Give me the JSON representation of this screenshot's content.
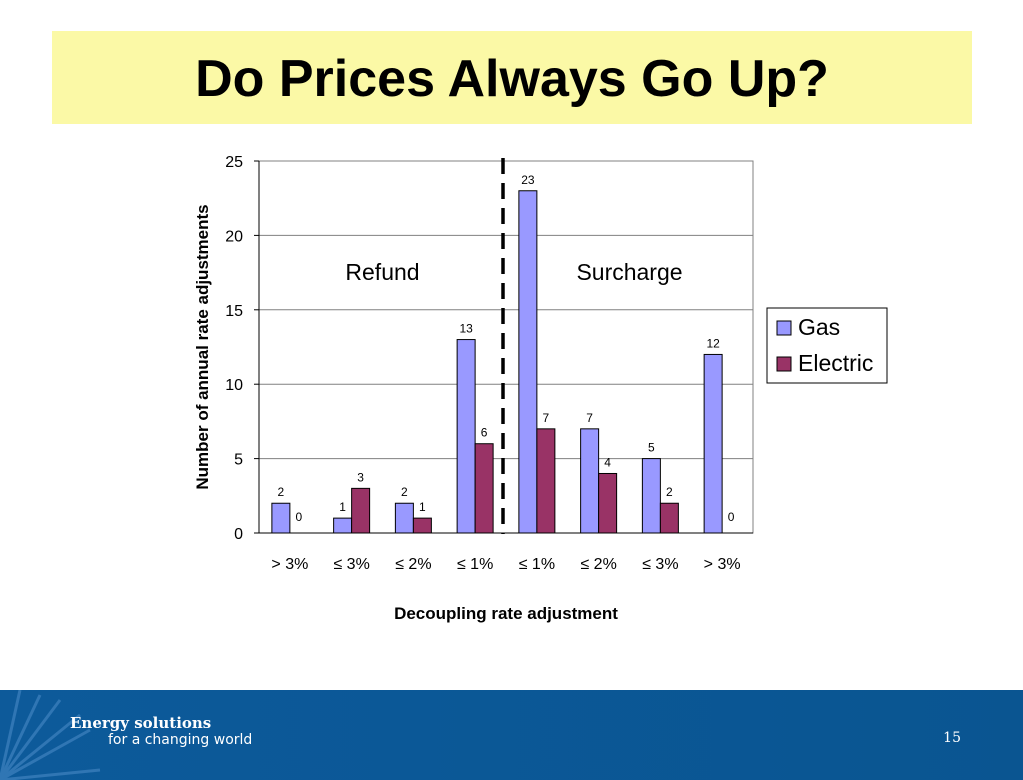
{
  "slide": {
    "title": "Do Prices Always Go Up?",
    "page_number": "15",
    "brand_line1": "Energy solutions",
    "brand_line2": "for a changing world",
    "title_bg": "#fbf9a6",
    "footer_bg": "#0b5897"
  },
  "chart_data": {
    "type": "bar",
    "categories": [
      "> 3%",
      "≤ 3%",
      "≤ 2%",
      "≤ 1%",
      "≤ 1%",
      "≤ 2%",
      "≤ 3%",
      "> 3%"
    ],
    "series": [
      {
        "name": "Gas",
        "values": [
          2,
          1,
          2,
          13,
          23,
          7,
          5,
          12
        ],
        "color": "#9999ff"
      },
      {
        "name": "Electric",
        "values": [
          0,
          3,
          1,
          6,
          7,
          4,
          2,
          0
        ],
        "color": "#993366"
      }
    ],
    "xlabel": "Decoupling rate adjustment",
    "ylabel": "Number of annual rate adjustments",
    "ylim": [
      0,
      25
    ],
    "yticks": [
      0,
      5,
      10,
      15,
      20,
      25
    ],
    "grid": true,
    "legend": "right",
    "annotations": [
      {
        "text": "Refund"
      },
      {
        "text": "Surcharge"
      }
    ],
    "divider": "dashed vertical line between the two ≤ 1% groups"
  }
}
